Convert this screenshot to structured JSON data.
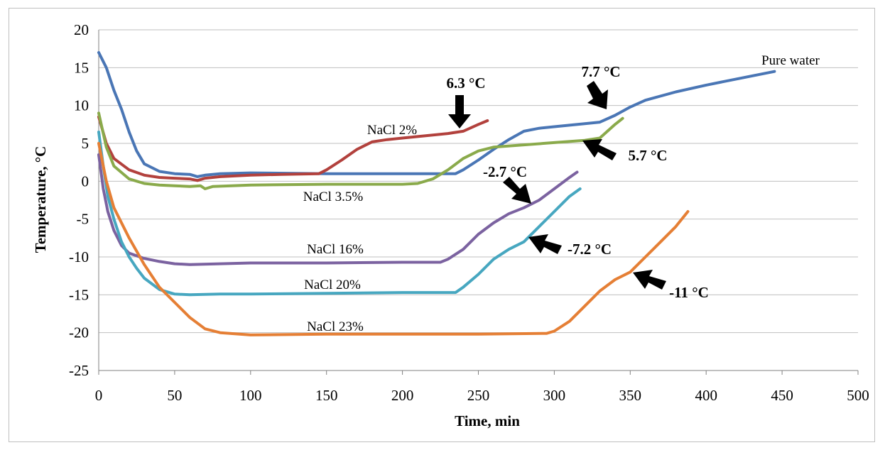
{
  "chart_data": {
    "type": "line",
    "xlabel": "Time, min",
    "ylabel": "Temperature, °C",
    "xlim": [
      0,
      500
    ],
    "ylim": [
      -25,
      20
    ],
    "xticks": [
      0,
      50,
      100,
      150,
      200,
      250,
      300,
      350,
      400,
      450,
      500
    ],
    "yticks": [
      20,
      15,
      10,
      5,
      0,
      -5,
      -10,
      -15,
      -20,
      -25
    ],
    "grid": "horizontal",
    "series": [
      {
        "name": "Pure water",
        "color": "#4a76b5",
        "points": [
          [
            0,
            17
          ],
          [
            5,
            15
          ],
          [
            10,
            12
          ],
          [
            15,
            9.5
          ],
          [
            20,
            6.5
          ],
          [
            25,
            4
          ],
          [
            30,
            2.3
          ],
          [
            40,
            1.3
          ],
          [
            50,
            1
          ],
          [
            60,
            0.9
          ],
          [
            65,
            0.6
          ],
          [
            70,
            0.8
          ],
          [
            80,
            1.0
          ],
          [
            100,
            1.1
          ],
          [
            150,
            1.0
          ],
          [
            200,
            1.0
          ],
          [
            235,
            1.0
          ],
          [
            240,
            1.5
          ],
          [
            250,
            2.8
          ],
          [
            260,
            4.2
          ],
          [
            270,
            5.5
          ],
          [
            280,
            6.6
          ],
          [
            290,
            7.0
          ],
          [
            300,
            7.2
          ],
          [
            320,
            7.6
          ],
          [
            330,
            7.8
          ],
          [
            340,
            8.7
          ],
          [
            350,
            9.8
          ],
          [
            360,
            10.7
          ],
          [
            380,
            11.8
          ],
          [
            400,
            12.7
          ],
          [
            420,
            13.5
          ],
          [
            445,
            14.5
          ]
        ]
      },
      {
        "name": "NaCl 2%",
        "color": "#b2413d",
        "points": [
          [
            0,
            8.5
          ],
          [
            5,
            5
          ],
          [
            10,
            3
          ],
          [
            20,
            1.5
          ],
          [
            30,
            0.8
          ],
          [
            40,
            0.5
          ],
          [
            50,
            0.4
          ],
          [
            60,
            0.3
          ],
          [
            65,
            0.1
          ],
          [
            70,
            0.4
          ],
          [
            80,
            0.6
          ],
          [
            100,
            0.8
          ],
          [
            120,
            0.9
          ],
          [
            145,
            1.0
          ],
          [
            150,
            1.5
          ],
          [
            160,
            2.8
          ],
          [
            170,
            4.2
          ],
          [
            180,
            5.2
          ],
          [
            190,
            5.5
          ],
          [
            200,
            5.7
          ],
          [
            210,
            5.9
          ],
          [
            220,
            6.1
          ],
          [
            230,
            6.3
          ],
          [
            240,
            6.6
          ],
          [
            250,
            7.5
          ],
          [
            256,
            8.0
          ]
        ]
      },
      {
        "name": "NaCl 3.5%",
        "color": "#8aaa4b",
        "points": [
          [
            0,
            9
          ],
          [
            5,
            4.5
          ],
          [
            10,
            2
          ],
          [
            20,
            0.3
          ],
          [
            30,
            -0.3
          ],
          [
            40,
            -0.5
          ],
          [
            50,
            -0.6
          ],
          [
            60,
            -0.7
          ],
          [
            67,
            -0.6
          ],
          [
            70,
            -1.0
          ],
          [
            75,
            -0.7
          ],
          [
            100,
            -0.5
          ],
          [
            150,
            -0.4
          ],
          [
            200,
            -0.4
          ],
          [
            210,
            -0.3
          ],
          [
            220,
            0.3
          ],
          [
            230,
            1.5
          ],
          [
            240,
            3
          ],
          [
            250,
            4.0
          ],
          [
            260,
            4.5
          ],
          [
            280,
            4.8
          ],
          [
            300,
            5.1
          ],
          [
            320,
            5.4
          ],
          [
            330,
            5.7
          ],
          [
            340,
            7.5
          ],
          [
            345,
            8.3
          ]
        ]
      },
      {
        "name": "NaCl 16%",
        "color": "#7b62a0",
        "points": [
          [
            0,
            3.5
          ],
          [
            3,
            -1
          ],
          [
            6,
            -4
          ],
          [
            10,
            -6.5
          ],
          [
            15,
            -8.5
          ],
          [
            20,
            -9.5
          ],
          [
            30,
            -10.2
          ],
          [
            40,
            -10.6
          ],
          [
            50,
            -10.9
          ],
          [
            60,
            -11.0
          ],
          [
            80,
            -10.9
          ],
          [
            100,
            -10.8
          ],
          [
            150,
            -10.8
          ],
          [
            200,
            -10.7
          ],
          [
            225,
            -10.7
          ],
          [
            230,
            -10.3
          ],
          [
            240,
            -9
          ],
          [
            250,
            -7
          ],
          [
            260,
            -5.5
          ],
          [
            270,
            -4.3
          ],
          [
            280,
            -3.5
          ],
          [
            290,
            -2.5
          ],
          [
            300,
            -1
          ],
          [
            310,
            0.5
          ],
          [
            315,
            1.2
          ]
        ]
      },
      {
        "name": "NaCl 20%",
        "color": "#47a7c0",
        "points": [
          [
            0,
            6.5
          ],
          [
            3,
            2
          ],
          [
            6,
            -2
          ],
          [
            10,
            -5
          ],
          [
            15,
            -8
          ],
          [
            20,
            -10
          ],
          [
            25,
            -11.5
          ],
          [
            30,
            -12.8
          ],
          [
            40,
            -14.3
          ],
          [
            50,
            -14.9
          ],
          [
            60,
            -15
          ],
          [
            80,
            -14.9
          ],
          [
            100,
            -14.9
          ],
          [
            150,
            -14.8
          ],
          [
            200,
            -14.7
          ],
          [
            235,
            -14.7
          ],
          [
            240,
            -14
          ],
          [
            250,
            -12.3
          ],
          [
            260,
            -10.3
          ],
          [
            270,
            -9
          ],
          [
            280,
            -8
          ],
          [
            290,
            -6
          ],
          [
            300,
            -4
          ],
          [
            310,
            -2
          ],
          [
            317,
            -1
          ]
        ]
      },
      {
        "name": "NaCl 23%",
        "color": "#e57f35",
        "points": [
          [
            0,
            5
          ],
          [
            5,
            0
          ],
          [
            10,
            -3.5
          ],
          [
            20,
            -7.5
          ],
          [
            30,
            -11
          ],
          [
            40,
            -14
          ],
          [
            50,
            -16
          ],
          [
            60,
            -18
          ],
          [
            70,
            -19.5
          ],
          [
            80,
            -20
          ],
          [
            100,
            -20.3
          ],
          [
            150,
            -20.2
          ],
          [
            200,
            -20.2
          ],
          [
            250,
            -20.2
          ],
          [
            295,
            -20.1
          ],
          [
            300,
            -19.8
          ],
          [
            310,
            -18.5
          ],
          [
            320,
            -16.5
          ],
          [
            330,
            -14.5
          ],
          [
            340,
            -13
          ],
          [
            350,
            -12
          ],
          [
            360,
            -10
          ],
          [
            370,
            -8
          ],
          [
            380,
            -6
          ],
          [
            388,
            -4
          ]
        ]
      }
    ],
    "annotations": [
      "6.3 °C",
      "7.7 °C",
      "5.7 °C",
      "-2.7 °C",
      "-7.2 °C",
      "-11 °C"
    ]
  }
}
